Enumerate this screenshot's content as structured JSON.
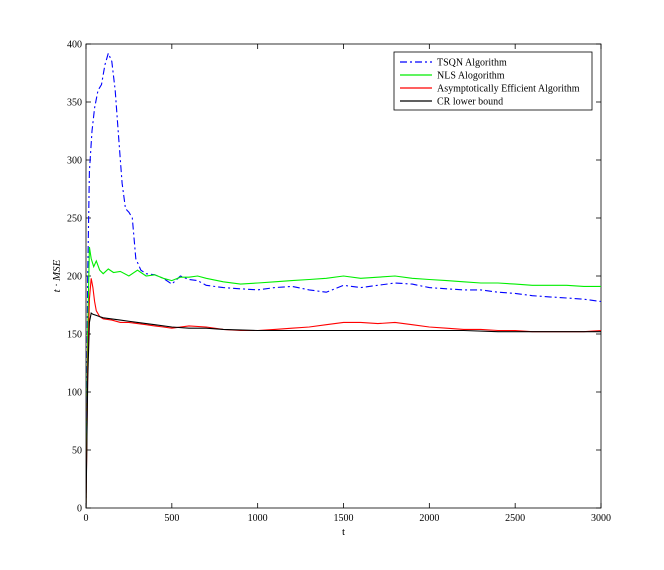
{
  "chart_data": {
    "type": "line",
    "title": "",
    "xlabel": "t",
    "ylabel": "t · MSE",
    "xlim": [
      0,
      3000
    ],
    "ylim": [
      0,
      400
    ],
    "xticks": [
      0,
      500,
      1000,
      1500,
      2000,
      2500,
      3000
    ],
    "yticks": [
      0,
      50,
      100,
      150,
      200,
      250,
      300,
      350,
      400
    ],
    "grid": false,
    "legend_position": "top-right",
    "series": [
      {
        "name": "TSQN Algorithm",
        "color": "#0000ff",
        "dash": "dash-dot",
        "x": [
          0,
          10,
          20,
          35,
          50,
          70,
          90,
          110,
          130,
          150,
          170,
          190,
          210,
          230,
          250,
          270,
          290,
          320,
          350,
          400,
          450,
          500,
          550,
          600,
          650,
          700,
          800,
          900,
          1000,
          1100,
          1200,
          1300,
          1400,
          1500,
          1600,
          1700,
          1800,
          1900,
          2000,
          2100,
          2200,
          2300,
          2400,
          2500,
          2600,
          2700,
          2800,
          2900,
          3000
        ],
        "y": [
          0,
          200,
          290,
          325,
          345,
          360,
          365,
          382,
          392,
          385,
          360,
          320,
          280,
          258,
          255,
          250,
          215,
          205,
          202,
          201,
          198,
          193,
          200,
          197,
          196,
          192,
          190,
          189,
          188,
          190,
          191,
          188,
          186,
          192,
          190,
          192,
          194,
          193,
          190,
          189,
          188,
          188,
          186,
          185,
          183,
          182,
          181,
          180,
          178
        ]
      },
      {
        "name": "NLS Alogorithm",
        "color": "#00ee00",
        "dash": "solid",
        "x": [
          0,
          10,
          20,
          30,
          45,
          60,
          80,
          100,
          130,
          160,
          200,
          250,
          300,
          350,
          400,
          450,
          500,
          550,
          600,
          650,
          700,
          800,
          900,
          1000,
          1100,
          1200,
          1300,
          1400,
          1500,
          1600,
          1700,
          1800,
          1900,
          2000,
          2100,
          2200,
          2300,
          2400,
          2500,
          2600,
          2700,
          2800,
          2900,
          3000
        ],
        "y": [
          0,
          150,
          225,
          215,
          208,
          213,
          205,
          202,
          206,
          203,
          204,
          200,
          205,
          200,
          201,
          198,
          196,
          199,
          199,
          200,
          198,
          195,
          193,
          194,
          195,
          196,
          197,
          198,
          200,
          198,
          199,
          200,
          198,
          197,
          196,
          195,
          194,
          194,
          193,
          192,
          192,
          192,
          191,
          191
        ]
      },
      {
        "name": "Asymptotically Efficient Algorithm",
        "color": "#ff0000",
        "dash": "solid",
        "x": [
          0,
          10,
          20,
          30,
          40,
          50,
          60,
          80,
          100,
          150,
          200,
          250,
          300,
          350,
          400,
          450,
          500,
          600,
          700,
          800,
          900,
          1000,
          1100,
          1200,
          1300,
          1400,
          1500,
          1600,
          1700,
          1800,
          1900,
          2000,
          2100,
          2200,
          2300,
          2400,
          2500,
          2600,
          2700,
          2800,
          2900,
          3000
        ],
        "y": [
          0,
          120,
          180,
          198,
          190,
          178,
          170,
          165,
          163,
          162,
          160,
          160,
          159,
          158,
          157,
          156,
          155,
          157,
          156,
          154,
          153,
          153,
          154,
          155,
          156,
          158,
          160,
          160,
          159,
          160,
          158,
          156,
          155,
          154,
          154,
          153,
          153,
          152,
          152,
          152,
          152,
          153
        ]
      },
      {
        "name": "CR lower bound",
        "color": "#000000",
        "dash": "solid",
        "x": [
          0,
          10,
          20,
          30,
          40,
          60,
          80,
          100,
          150,
          200,
          300,
          400,
          500,
          600,
          700,
          800,
          1000,
          1200,
          1400,
          1600,
          1800,
          2000,
          2200,
          2400,
          2600,
          2800,
          3000
        ],
        "y": [
          0,
          110,
          160,
          168,
          167,
          166,
          165,
          164,
          163,
          162,
          160,
          158,
          156,
          155,
          155,
          154,
          153,
          153,
          153,
          153,
          153,
          153,
          153,
          152,
          152,
          152,
          152
        ]
      }
    ]
  }
}
